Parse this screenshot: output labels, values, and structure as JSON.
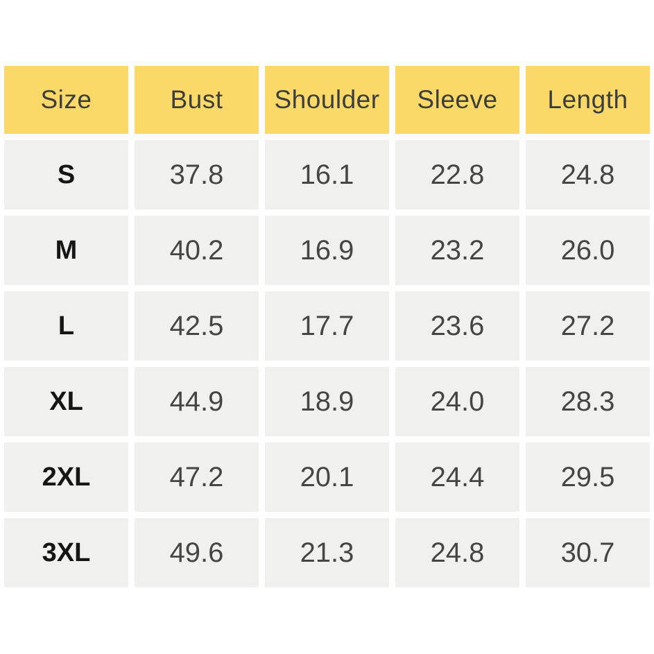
{
  "table": {
    "title": "size-chart",
    "headers": [
      "Size",
      "Bust",
      "Shoulder",
      "Sleeve",
      "Length"
    ],
    "rows": [
      {
        "size": "S",
        "bust": "37.8",
        "shoulder": "16.1",
        "sleeve": "22.8",
        "length": "24.8"
      },
      {
        "size": "M",
        "bust": "40.2",
        "shoulder": "16.9",
        "sleeve": "23.2",
        "length": "26.0"
      },
      {
        "size": "L",
        "bust": "42.5",
        "shoulder": "17.7",
        "sleeve": "23.6",
        "length": "27.2"
      },
      {
        "size": "XL",
        "bust": "44.9",
        "shoulder": "18.9",
        "sleeve": "24.0",
        "length": "28.3"
      },
      {
        "size": "2XL",
        "bust": "47.2",
        "shoulder": "20.1",
        "sleeve": "24.4",
        "length": "29.5"
      },
      {
        "size": "3XL",
        "bust": "49.6",
        "shoulder": "21.3",
        "sleeve": "24.8",
        "length": "30.7"
      }
    ],
    "colors": {
      "header_background": "#FBD968",
      "row_background": "#F0F0EF",
      "header_text": "#3D3D3D",
      "value_text": "#454545",
      "size_label_text": "#161616",
      "page_background": "#FFFFFF"
    }
  }
}
